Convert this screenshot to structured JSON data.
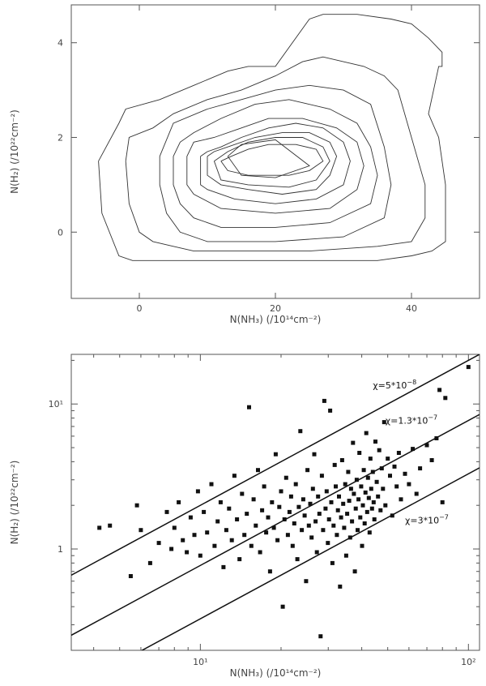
{
  "chart_data": [
    {
      "type": "contour",
      "xlabel": "N(NH₃) (/10¹⁴cm⁻²)",
      "ylabel": "N(H₂) (/10²²cm⁻²)",
      "xlim": [
        -10,
        50
      ],
      "ylim": [
        -1.4,
        4.8
      ],
      "xticks": [
        0,
        20,
        40
      ],
      "yticks": [
        0,
        2,
        4
      ],
      "contours": [
        [
          [
            -6,
            1.5
          ],
          [
            -5.5,
            0.4
          ],
          [
            -3,
            -0.5
          ],
          [
            -1,
            -0.6
          ],
          [
            3,
            -0.6
          ],
          [
            7,
            -0.6
          ],
          [
            10,
            -0.6
          ],
          [
            15,
            -0.6
          ],
          [
            25,
            -0.6
          ],
          [
            35,
            -0.6
          ],
          [
            40,
            -0.5
          ],
          [
            43,
            -0.4
          ],
          [
            45,
            -0.2
          ],
          [
            45,
            0.5
          ],
          [
            45,
            1
          ],
          [
            44,
            2
          ],
          [
            42.5,
            2.5
          ],
          [
            44,
            3.5
          ],
          [
            44.5,
            3.5
          ],
          [
            44.5,
            3.8
          ],
          [
            42.5,
            4.1
          ],
          [
            40,
            4.4
          ],
          [
            37,
            4.5
          ],
          [
            32,
            4.6
          ],
          [
            27,
            4.6
          ],
          [
            25,
            4.5
          ],
          [
            20,
            3.5
          ],
          [
            16,
            3.5
          ],
          [
            13,
            3.4
          ],
          [
            8,
            3.1
          ],
          [
            3,
            2.8
          ],
          [
            -2,
            2.6
          ],
          [
            -3,
            2.3
          ],
          [
            -6,
            1.5
          ]
        ],
        [
          [
            -2,
            1.5
          ],
          [
            -1.5,
            0.6
          ],
          [
            0,
            0
          ],
          [
            2,
            -0.2
          ],
          [
            5,
            -0.3
          ],
          [
            8,
            -0.4
          ],
          [
            12,
            -0.4
          ],
          [
            17,
            -0.4
          ],
          [
            25,
            -0.4
          ],
          [
            35,
            -0.3
          ],
          [
            40,
            -0.2
          ],
          [
            42,
            0.3
          ],
          [
            42,
            1
          ],
          [
            40,
            2
          ],
          [
            38,
            3
          ],
          [
            36,
            3.3
          ],
          [
            33,
            3.5
          ],
          [
            27,
            3.7
          ],
          [
            24,
            3.6
          ],
          [
            20,
            3.3
          ],
          [
            15,
            3
          ],
          [
            10,
            2.8
          ],
          [
            5,
            2.5
          ],
          [
            2,
            2.2
          ],
          [
            -1.5,
            2
          ],
          [
            -2,
            1.5
          ]
        ],
        [
          [
            3,
            1.6
          ],
          [
            3,
            1
          ],
          [
            4,
            0.4
          ],
          [
            6,
            0
          ],
          [
            10,
            -0.2
          ],
          [
            20,
            -0.2
          ],
          [
            30,
            -0.1
          ],
          [
            36,
            0.3
          ],
          [
            37,
            1
          ],
          [
            36,
            1.8
          ],
          [
            34,
            2.7
          ],
          [
            30,
            3
          ],
          [
            25,
            3.1
          ],
          [
            20,
            3
          ],
          [
            15,
            2.8
          ],
          [
            10,
            2.6
          ],
          [
            5,
            2.3
          ],
          [
            3,
            1.6
          ]
        ],
        [
          [
            5,
            1.6
          ],
          [
            5,
            1
          ],
          [
            6,
            0.6
          ],
          [
            8,
            0.3
          ],
          [
            12,
            0.1
          ],
          [
            20,
            0.1
          ],
          [
            28,
            0.2
          ],
          [
            34,
            0.6
          ],
          [
            35,
            1.2
          ],
          [
            34,
            1.8
          ],
          [
            32,
            2.3
          ],
          [
            28,
            2.6
          ],
          [
            22,
            2.8
          ],
          [
            17,
            2.7
          ],
          [
            12,
            2.4
          ],
          [
            8,
            2.1
          ],
          [
            6,
            1.9
          ],
          [
            5,
            1.6
          ]
        ],
        [
          [
            7,
            1.6
          ],
          [
            7,
            1
          ],
          [
            8,
            0.8
          ],
          [
            12,
            0.5
          ],
          [
            20,
            0.4
          ],
          [
            28,
            0.5
          ],
          [
            32,
            0.9
          ],
          [
            33,
            1.4
          ],
          [
            32,
            1.9
          ],
          [
            29,
            2.2
          ],
          [
            24,
            2.4
          ],
          [
            19,
            2.4
          ],
          [
            15,
            2.2
          ],
          [
            11,
            2
          ],
          [
            8,
            1.9
          ],
          [
            7,
            1.6
          ]
        ],
        [
          [
            9,
            1.6
          ],
          [
            9,
            1
          ],
          [
            10,
            0.9
          ],
          [
            14,
            0.7
          ],
          [
            20,
            0.6
          ],
          [
            26,
            0.7
          ],
          [
            30,
            1
          ],
          [
            31,
            1.5
          ],
          [
            30,
            1.9
          ],
          [
            27,
            2.2
          ],
          [
            23,
            2.3
          ],
          [
            19,
            2.2
          ],
          [
            15,
            2
          ],
          [
            12,
            1.8
          ],
          [
            10,
            1.7
          ],
          [
            9,
            1.6
          ]
        ],
        [
          [
            10,
            1.6
          ],
          [
            10,
            1.2
          ],
          [
            12,
            1
          ],
          [
            16,
            0.9
          ],
          [
            21,
            0.8
          ],
          [
            26,
            0.9
          ],
          [
            28,
            1.2
          ],
          [
            29,
            1.6
          ],
          [
            28,
            1.9
          ],
          [
            25,
            2.1
          ],
          [
            21,
            2.1
          ],
          [
            17,
            2
          ],
          [
            13,
            1.8
          ],
          [
            11,
            1.7
          ],
          [
            10,
            1.6
          ]
        ],
        [
          [
            11,
            1.5
          ],
          [
            12,
            1.1
          ],
          [
            16,
            1
          ],
          [
            22,
            0.95
          ],
          [
            26,
            1.1
          ],
          [
            28,
            1.5
          ],
          [
            27,
            1.8
          ],
          [
            24,
            2
          ],
          [
            20,
            2
          ],
          [
            16,
            1.9
          ],
          [
            13,
            1.7
          ],
          [
            11,
            1.5
          ]
        ],
        [
          [
            12,
            1.5
          ],
          [
            13,
            1.3
          ],
          [
            16,
            1.2
          ],
          [
            22,
            1.2
          ],
          [
            25,
            1.3
          ],
          [
            27,
            1.5
          ],
          [
            26,
            1.75
          ],
          [
            23,
            1.85
          ],
          [
            19,
            1.85
          ],
          [
            16,
            1.75
          ],
          [
            13.5,
            1.6
          ],
          [
            12,
            1.5
          ]
        ],
        [
          [
            13,
            1.6
          ],
          [
            15,
            1.2
          ],
          [
            20,
            1.15
          ],
          [
            25,
            1.4
          ],
          [
            20,
            1.95
          ],
          [
            15,
            1.85
          ],
          [
            13,
            1.6
          ]
        ]
      ]
    },
    {
      "type": "scatter",
      "xscale": "log",
      "yscale": "log",
      "xlabel": "N(NH₃) (/10¹⁴cm⁻²)",
      "ylabel": "N(H₂) (/10²²cm⁻²)",
      "xlim": [
        3.3,
        110
      ],
      "ylim": [
        0.2,
        22
      ],
      "xticks": [
        10,
        100
      ],
      "xtick_labels": [
        "10¹",
        "10²"
      ],
      "yticks": [
        1,
        10
      ],
      "ytick_labels": [
        "1",
        "10¹"
      ],
      "lines": [
        {
          "label_base": "χ=5*10",
          "label_exp": "−8",
          "y_at_x1": 0.2,
          "label_x": 44,
          "label_y": 12.8
        },
        {
          "label_base": "χ=1.3*10",
          "label_exp": "−7",
          "y_at_x1": 0.077,
          "label_x": 49,
          "label_y": 7.3
        },
        {
          "label_base": "χ=3*10",
          "label_exp": "−7",
          "y_at_x1": 0.033,
          "label_x": 58,
          "label_y": 1.5
        }
      ],
      "points": [
        [
          4.2,
          1.4
        ],
        [
          4.6,
          1.45
        ],
        [
          5.5,
          0.65
        ],
        [
          5.8,
          2
        ],
        [
          6,
          1.35
        ],
        [
          6.5,
          0.8
        ],
        [
          7,
          1.1
        ],
        [
          7.5,
          1.8
        ],
        [
          7.8,
          1
        ],
        [
          8,
          1.4
        ],
        [
          8.3,
          2.1
        ],
        [
          8.6,
          1.15
        ],
        [
          8.9,
          0.95
        ],
        [
          9.2,
          1.65
        ],
        [
          9.5,
          1.25
        ],
        [
          9.8,
          2.5
        ],
        [
          10,
          0.9
        ],
        [
          10.3,
          1.8
        ],
        [
          10.6,
          1.3
        ],
        [
          11,
          2.8
        ],
        [
          11.3,
          1.05
        ],
        [
          11.6,
          1.55
        ],
        [
          11.9,
          2.1
        ],
        [
          12.2,
          0.75
        ],
        [
          12.5,
          1.35
        ],
        [
          12.8,
          1.9
        ],
        [
          13.1,
          1.15
        ],
        [
          13.4,
          3.2
        ],
        [
          13.7,
          1.6
        ],
        [
          14,
          0.85
        ],
        [
          14.3,
          2.4
        ],
        [
          14.6,
          1.25
        ],
        [
          14.9,
          1.75
        ],
        [
          15.2,
          9.5
        ],
        [
          15.5,
          1.05
        ],
        [
          15.8,
          2.2
        ],
        [
          16.1,
          1.45
        ],
        [
          16.4,
          3.5
        ],
        [
          16.7,
          0.95
        ],
        [
          17,
          1.85
        ],
        [
          17.3,
          2.7
        ],
        [
          17.6,
          1.3
        ],
        [
          17.9,
          1.65
        ],
        [
          18.2,
          0.7
        ],
        [
          18.5,
          2.1
        ],
        [
          18.8,
          1.4
        ],
        [
          19.1,
          4.5
        ],
        [
          19.4,
          1.15
        ],
        [
          19.7,
          1.95
        ],
        [
          20,
          2.5
        ],
        [
          20.3,
          0.4
        ],
        [
          20.6,
          1.6
        ],
        [
          20.9,
          3.1
        ],
        [
          21.2,
          1.25
        ],
        [
          21.5,
          1.8
        ],
        [
          21.8,
          2.3
        ],
        [
          22.1,
          1.05
        ],
        [
          22.4,
          1.5
        ],
        [
          22.7,
          2.8
        ],
        [
          23,
          0.85
        ],
        [
          23.3,
          1.95
        ],
        [
          23.6,
          6.5
        ],
        [
          23.9,
          1.35
        ],
        [
          24.2,
          2.2
        ],
        [
          24.5,
          1.7
        ],
        [
          24.8,
          0.6
        ],
        [
          25.1,
          3.5
        ],
        [
          25.4,
          1.45
        ],
        [
          25.7,
          2.05
        ],
        [
          26,
          1.2
        ],
        [
          26.3,
          2.6
        ],
        [
          26.6,
          4.5
        ],
        [
          26.9,
          1.55
        ],
        [
          27.2,
          0.95
        ],
        [
          27.5,
          2.3
        ],
        [
          27.8,
          1.75
        ],
        [
          28.1,
          0.25
        ],
        [
          28.4,
          3.2
        ],
        [
          28.7,
          1.35
        ],
        [
          29,
          10.5
        ],
        [
          29.3,
          1.9
        ],
        [
          29.6,
          2.5
        ],
        [
          29.9,
          1.1
        ],
        [
          30.2,
          1.6
        ],
        [
          30.5,
          9
        ],
        [
          30.8,
          2.1
        ],
        [
          31.1,
          0.8
        ],
        [
          31.4,
          1.45
        ],
        [
          31.7,
          3.8
        ],
        [
          32,
          2.7
        ],
        [
          32.3,
          1.25
        ],
        [
          32.6,
          1.85
        ],
        [
          32.9,
          2.3
        ],
        [
          33.2,
          0.55
        ],
        [
          33.5,
          1.65
        ],
        [
          33.8,
          4.1
        ],
        [
          34.1,
          2.05
        ],
        [
          34.4,
          1.4
        ],
        [
          34.7,
          2.8
        ],
        [
          35,
          0.9
        ],
        [
          35.3,
          1.75
        ],
        [
          35.6,
          3.4
        ],
        [
          35.9,
          2.15
        ],
        [
          36.2,
          1.2
        ],
        [
          36.5,
          2.6
        ],
        [
          36.8,
          1.55
        ],
        [
          37.1,
          5.4
        ],
        [
          37.4,
          2.4
        ],
        [
          37.7,
          0.7
        ],
        [
          38,
          1.9
        ],
        [
          38.3,
          3
        ],
        [
          38.6,
          1.35
        ],
        [
          38.9,
          2.2
        ],
        [
          39.2,
          4.6
        ],
        [
          39.5,
          1.65
        ],
        [
          39.8,
          2.7
        ],
        [
          40.1,
          1.05
        ],
        [
          40.4,
          2
        ],
        [
          40.7,
          3.5
        ],
        [
          41,
          1.5
        ],
        [
          41.3,
          2.45
        ],
        [
          41.6,
          6.3
        ],
        [
          41.9,
          1.8
        ],
        [
          42.2,
          3.1
        ],
        [
          42.5,
          2.25
        ],
        [
          42.8,
          1.3
        ],
        [
          43.1,
          4.2
        ],
        [
          43.4,
          2.6
        ],
        [
          43.7,
          1.9
        ],
        [
          44,
          3.4
        ],
        [
          44.3,
          2.1
        ],
        [
          44.6,
          1.6
        ],
        [
          45,
          5.5
        ],
        [
          45.5,
          2.9
        ],
        [
          46,
          2.3
        ],
        [
          46.5,
          4.8
        ],
        [
          47,
          1.85
        ],
        [
          47.5,
          3.6
        ],
        [
          48,
          2.6
        ],
        [
          48.5,
          7.5
        ],
        [
          49,
          2
        ],
        [
          50,
          4.2
        ],
        [
          51,
          3.2
        ],
        [
          52,
          1.7
        ],
        [
          53,
          3.7
        ],
        [
          54,
          2.7
        ],
        [
          55,
          4.6
        ],
        [
          56,
          2.2
        ],
        [
          58,
          3.3
        ],
        [
          60,
          2.8
        ],
        [
          62,
          4.9
        ],
        [
          64,
          2.4
        ],
        [
          66,
          3.6
        ],
        [
          70,
          5.2
        ],
        [
          73,
          4.1
        ],
        [
          76,
          5.8
        ],
        [
          78,
          12.5
        ],
        [
          80,
          2.1
        ],
        [
          82,
          11
        ],
        [
          100,
          18
        ]
      ]
    }
  ]
}
